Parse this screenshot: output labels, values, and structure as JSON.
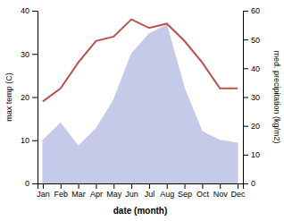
{
  "chart_data": {
    "type": "line",
    "categories": [
      "Jan",
      "Feb",
      "Mar",
      "Apr",
      "May",
      "Jun",
      "Jul",
      "Aug",
      "Sep",
      "Oct",
      "Nov",
      "Dec"
    ],
    "xlabel": "date (month)",
    "ylabel": "max temp (C)",
    "y2label": "med. precipitation (kg/m2)",
    "ylim": [
      0,
      40
    ],
    "yticks": [
      0,
      10,
      20,
      30,
      40
    ],
    "y2lim": [
      0,
      60
    ],
    "y2ticks": [
      0,
      10,
      20,
      30,
      40,
      50,
      60
    ],
    "series": [
      {
        "type": "area",
        "axis": "y2",
        "color": "#c5cae9",
        "values": [
          15,
          21,
          13,
          19,
          29,
          45,
          52,
          55,
          33,
          18,
          15,
          14
        ]
      },
      {
        "type": "line",
        "color": "#c0504d",
        "values": [
          19,
          22,
          28,
          33,
          34,
          38,
          36,
          37,
          33,
          28,
          22,
          22
        ]
      }
    ]
  }
}
